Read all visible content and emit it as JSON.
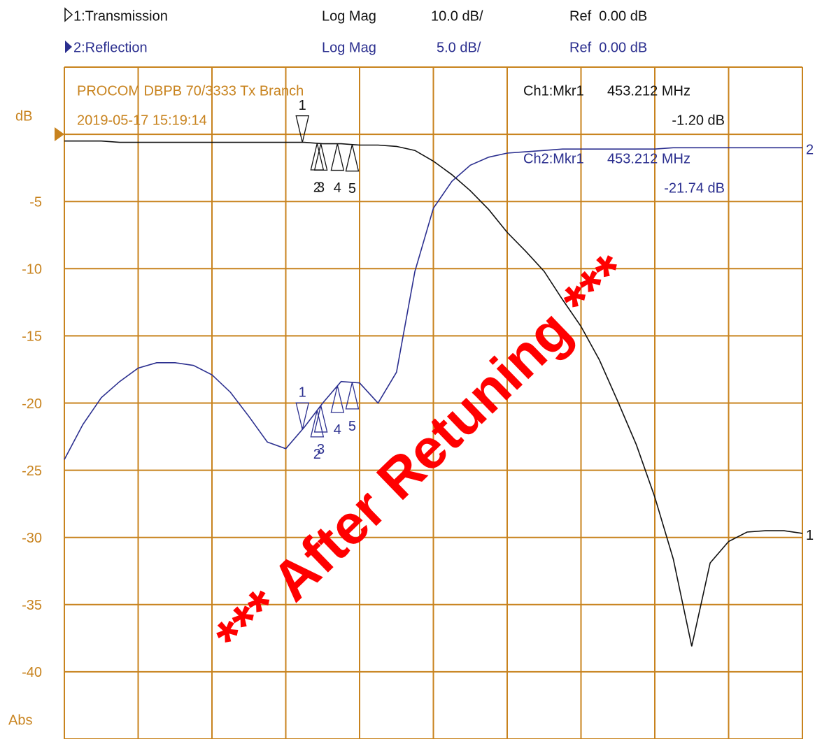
{
  "chart_data": {
    "type": "line",
    "title": "PROCOM DBPB 70/3333 Tx Branch",
    "subtitle": "2019-05-17 15:19:14",
    "y_unit": "dB",
    "y_footer": "Abs",
    "ylim": [
      -45,
      5
    ],
    "yticks": [
      -5,
      -10,
      -15,
      -20,
      -25,
      -30,
      -35,
      -40
    ],
    "x_divisions": 10,
    "y_divisions": 10,
    "grid": true,
    "grid_color": "#c8831e",
    "watermark": "*** After Retuning ***",
    "watermark_color": "#ff0000",
    "series": [
      {
        "name": "1:Transmission",
        "format": "Log Mag",
        "scale": "10.0 dB/",
        "ref": "Ref  0.00 dB",
        "trace_label": "1",
        "color": "#111111",
        "readout": {
          "channel": "Ch1:Mkr1",
          "freq": "453.212 MHz",
          "value": "-1.20 dB"
        },
        "values": [
          -0.5,
          -0.5,
          -0.5,
          -0.6,
          -0.6,
          -0.6,
          -0.6,
          -0.6,
          -0.6,
          -0.6,
          -0.6,
          -0.6,
          -0.6,
          -0.6,
          -0.7,
          -0.7,
          -0.8,
          -0.8,
          -0.9,
          -1.2,
          -2.0,
          -3.0,
          -4.2,
          -5.6,
          -7.3,
          -8.7,
          -10.2,
          -12.3,
          -14.3,
          -16.8,
          -19.9,
          -23.1,
          -27.0,
          -31.6,
          -38.1,
          -31.9,
          -30.3,
          -29.6,
          -29.5,
          -29.5,
          -29.7
        ],
        "markers": [
          {
            "label": "1",
            "x": 12.9,
            "dir": "down"
          },
          {
            "label": "2",
            "x": 13.7,
            "dir": "up"
          },
          {
            "label": "3",
            "x": 13.9,
            "dir": "up"
          },
          {
            "label": "4",
            "x": 14.8,
            "dir": "up"
          },
          {
            "label": "5",
            "x": 15.6,
            "dir": "up"
          }
        ]
      },
      {
        "name": "2:Reflection",
        "format": "Log Mag",
        "scale": "5.0 dB/",
        "ref": "Ref  0.00 dB",
        "trace_label": "2",
        "color": "#2b2f8f",
        "readout": {
          "channel": "Ch2:Mkr1",
          "freq": "453.212 MHz",
          "value": "-21.74 dB"
        },
        "values": [
          -24.2,
          -21.6,
          -19.6,
          -18.4,
          -17.4,
          -17.0,
          -17.0,
          -17.2,
          -17.9,
          -19.2,
          -21.0,
          -22.9,
          -23.4,
          -21.8,
          -20.0,
          -18.4,
          -18.5,
          -20.0,
          -17.7,
          -10.2,
          -5.5,
          -3.5,
          -2.3,
          -1.7,
          -1.4,
          -1.3,
          -1.2,
          -1.1,
          -1.1,
          -1.1,
          -1.1,
          -1.1,
          -1.1,
          -1.0,
          -1.0,
          -1.0,
          -1.0,
          -1.0,
          -1.0,
          -1.0,
          -1.0
        ],
        "markers": [
          {
            "label": "1",
            "x": 12.9,
            "dir": "down"
          },
          {
            "label": "2",
            "x": 13.7,
            "dir": "up"
          },
          {
            "label": "3",
            "x": 13.9,
            "dir": "up"
          },
          {
            "label": "4",
            "x": 14.8,
            "dir": "up"
          },
          {
            "label": "5",
            "x": 15.6,
            "dir": "up"
          }
        ]
      }
    ]
  }
}
